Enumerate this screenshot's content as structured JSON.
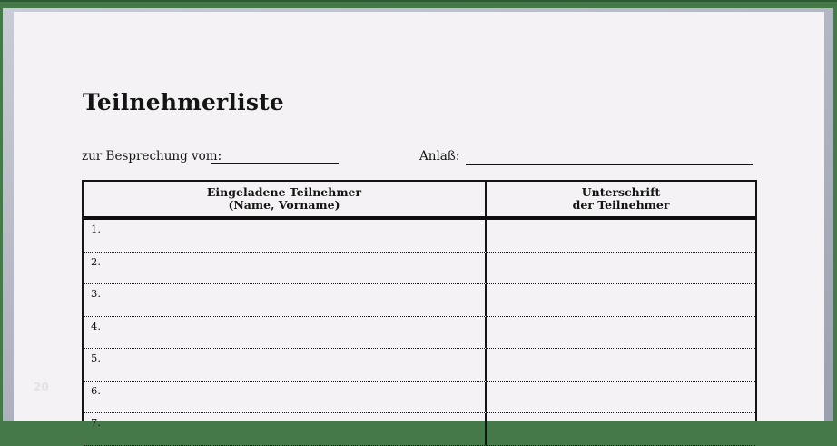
{
  "page": {
    "title": "Teilnehmerliste",
    "page_number": "20"
  },
  "form": {
    "meeting_date_label": "zur Besprechung vom:",
    "meeting_date_value": "",
    "occasion_label": "Anlaß:",
    "occasion_value": ""
  },
  "table": {
    "columns": [
      {
        "line1": "Eingeladene Teilnehmer",
        "line2": "(Name, Vorname)"
      },
      {
        "line1": "Unterschrift",
        "line2": "der Teilnehmer"
      }
    ],
    "rows": [
      {
        "number": "1.",
        "name": "",
        "signature": ""
      },
      {
        "number": "2.",
        "name": "",
        "signature": ""
      },
      {
        "number": "3.",
        "name": "",
        "signature": ""
      },
      {
        "number": "4.",
        "name": "",
        "signature": ""
      },
      {
        "number": "5.",
        "name": "",
        "signature": ""
      },
      {
        "number": "6.",
        "name": "",
        "signature": ""
      },
      {
        "number": "7.",
        "name": "",
        "signature": ""
      }
    ]
  },
  "colors": {
    "border_green": "#45794a",
    "border_green_dark_edge": "#2c5a33",
    "bevel_gray": "#b2b6c2",
    "page_background": "#f4f2f4",
    "ink": "#141414",
    "watermark_gray": "#e3e1e3"
  }
}
